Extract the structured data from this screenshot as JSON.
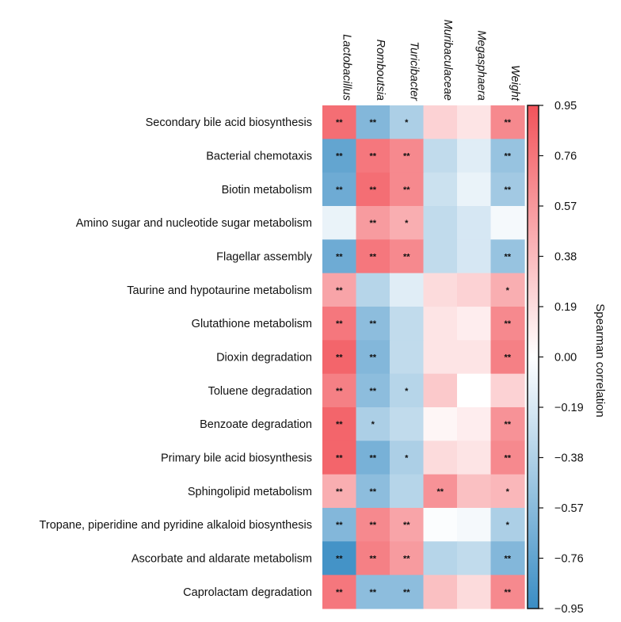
{
  "chart_data": {
    "type": "heatmap",
    "title": "",
    "columns": [
      "Lactobacillus",
      "Romboutsia",
      "Turicibacter",
      "Muribaculaceae",
      "Megasphaera",
      "Weight"
    ],
    "rows": [
      "Secondary bile acid biosynthesis",
      "Bacterial chemotaxis",
      "Biotin metabolism",
      "Amino sugar and nucleotide sugar metabolism",
      "Flagellar assembly",
      "Taurine and hypotaurine metabolism",
      "Glutathione metabolism",
      "Dioxin degradation",
      "Toluene degradation",
      "Benzoate degradation",
      "Primary bile acid biosynthesis",
      "Sphingolipid metabolism",
      "Tropane, piperidine and pyridine alkaloid biosynthesis",
      "Ascorbate and aldarate metabolism",
      "Caprolactam degradation"
    ],
    "values": [
      [
        0.8,
        -0.6,
        -0.4,
        0.25,
        0.15,
        0.65
      ],
      [
        -0.75,
        0.75,
        0.65,
        -0.3,
        -0.15,
        -0.5
      ],
      [
        -0.7,
        0.8,
        0.65,
        -0.25,
        -0.1,
        -0.45
      ],
      [
        -0.1,
        0.55,
        0.45,
        -0.3,
        -0.2,
        -0.05
      ],
      [
        -0.7,
        0.75,
        0.65,
        -0.3,
        -0.2,
        -0.5
      ],
      [
        0.5,
        -0.35,
        -0.15,
        0.2,
        0.25,
        0.45
      ],
      [
        0.75,
        -0.55,
        -0.3,
        0.15,
        0.1,
        0.65
      ],
      [
        0.85,
        -0.6,
        -0.3,
        0.15,
        0.15,
        0.7
      ],
      [
        0.7,
        -0.55,
        -0.35,
        0.3,
        0.0,
        0.25
      ],
      [
        0.85,
        -0.4,
        -0.3,
        0.05,
        0.1,
        0.6
      ],
      [
        0.85,
        -0.65,
        -0.4,
        0.2,
        0.15,
        0.65
      ],
      [
        0.45,
        -0.55,
        -0.35,
        0.6,
        0.35,
        0.4
      ],
      [
        -0.6,
        0.65,
        0.5,
        -0.02,
        -0.05,
        -0.4
      ],
      [
        -0.9,
        0.7,
        0.55,
        -0.35,
        -0.3,
        -0.6
      ],
      [
        0.75,
        -0.55,
        -0.55,
        0.35,
        0.2,
        0.65
      ]
    ],
    "significance": [
      [
        "**",
        "**",
        "*",
        "",
        "",
        "**"
      ],
      [
        "**",
        "**",
        "**",
        "",
        "",
        "**"
      ],
      [
        "**",
        "**",
        "**",
        "",
        "",
        "**"
      ],
      [
        "",
        "**",
        "*",
        "",
        "",
        ""
      ],
      [
        "**",
        "**",
        "**",
        "",
        "",
        "**"
      ],
      [
        "**",
        "",
        "",
        "",
        "",
        "*"
      ],
      [
        "**",
        "**",
        "",
        "",
        "",
        "**"
      ],
      [
        "**",
        "**",
        "",
        "",
        "",
        "**"
      ],
      [
        "**",
        "**",
        "*",
        "",
        "",
        ""
      ],
      [
        "**",
        "*",
        "",
        "",
        "",
        "**"
      ],
      [
        "**",
        "**",
        "*",
        "",
        "",
        "**"
      ],
      [
        "**",
        "**",
        "",
        "**",
        "",
        "*"
      ],
      [
        "**",
        "**",
        "**",
        "",
        "",
        "*"
      ],
      [
        "**",
        "**",
        "**",
        "",
        "",
        "**"
      ],
      [
        "**",
        "**",
        "**",
        "",
        "",
        "**"
      ]
    ],
    "colorbar": {
      "label": "Spearman correlation",
      "range": [
        -0.95,
        0.95
      ],
      "ticks": [
        "0.95",
        "0.76",
        "0.57",
        "0.38",
        "0.19",
        "0.00",
        "−0.19",
        "−0.38",
        "−0.57",
        "−0.76",
        "−0.95"
      ],
      "tick_values": [
        0.95,
        0.76,
        0.57,
        0.38,
        0.19,
        0.0,
        -0.19,
        -0.38,
        -0.57,
        -0.76,
        -0.95
      ],
      "low_color": "#3A8DC4",
      "mid_color": "#FFFFFF",
      "high_color": "#F2535A"
    }
  }
}
